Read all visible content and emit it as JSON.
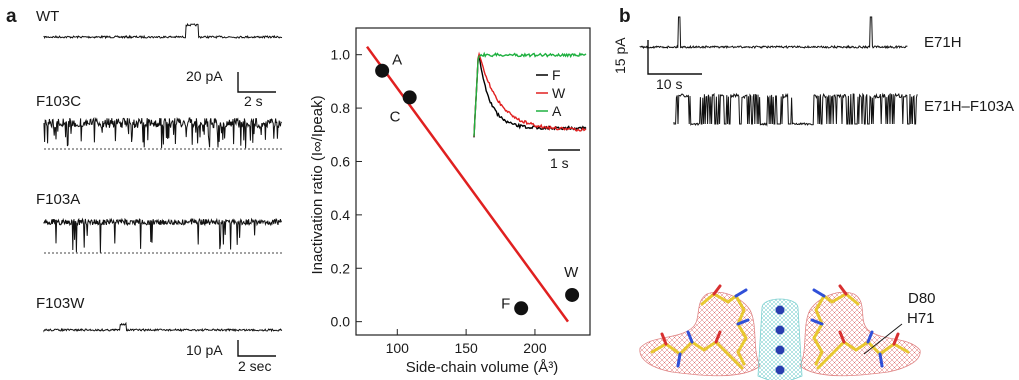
{
  "panel_a": {
    "letter": "a",
    "traces": [
      {
        "label": "WT"
      },
      {
        "label": "F103C"
      },
      {
        "label": "F103A"
      },
      {
        "label": "F103W"
      }
    ],
    "scalebar_top": {
      "current": "20 pA",
      "time": "2 s"
    },
    "scalebar_bottom": {
      "current": "10 pA",
      "time": "2 sec"
    }
  },
  "chart_data": {
    "type": "scatter",
    "xlabel": "Side-chain volume (Å³)",
    "ylabel": "Inactivation ratio (I∞/Ipeak)",
    "xlim": [
      70,
      240
    ],
    "ylim": [
      -0.05,
      1.1
    ],
    "x_ticks": [
      100,
      150,
      200
    ],
    "y_ticks": [
      0.0,
      0.2,
      0.4,
      0.6,
      0.8,
      1.0
    ],
    "points": [
      {
        "label": "A",
        "x": 89,
        "y": 0.94
      },
      {
        "label": "C",
        "x": 109,
        "y": 0.84
      },
      {
        "label": "F",
        "x": 190,
        "y": 0.05
      },
      {
        "label": "W",
        "x": 227,
        "y": 0.1
      }
    ],
    "fit_line": {
      "x": [
        78,
        224
      ],
      "y": [
        1.03,
        0.0
      ],
      "color": "#e02020"
    },
    "inset": {
      "legend": [
        {
          "name": "F",
          "color": "#000000"
        },
        {
          "name": "W",
          "color": "#e02020"
        },
        {
          "name": "A",
          "color": "#1fb040"
        }
      ],
      "scalebar": "1 s"
    },
    "grid": false
  },
  "panel_b": {
    "letter": "b",
    "traces": [
      {
        "label": "E71H"
      },
      {
        "label": "E71H–F103A"
      }
    ],
    "scalebar": {
      "current": "15 pA",
      "time": "10 s"
    },
    "structure_labels": {
      "d80": "D80",
      "h71": "H71"
    }
  }
}
